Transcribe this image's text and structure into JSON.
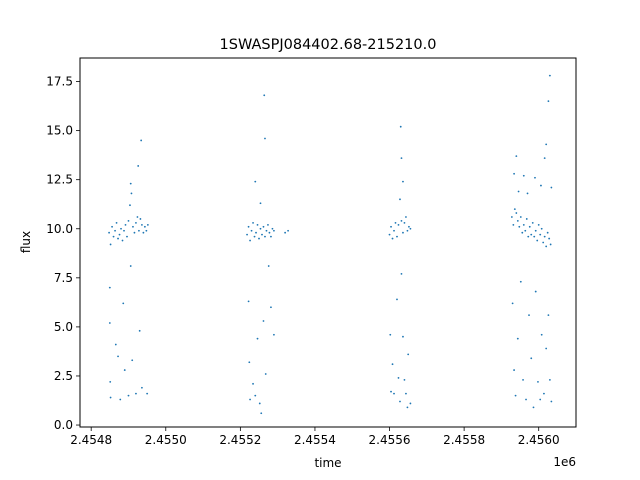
{
  "chart_data": {
    "type": "scatter",
    "title": "1SWASPJ084402.68-215210.0",
    "xlabel": "time",
    "ylabel": "flux",
    "x_offset_label": "1e6",
    "xlim": [
      2454770,
      2456100
    ],
    "ylim": [
      -0.1,
      18.7
    ],
    "x_ticks": [
      2454800,
      2455000,
      2455200,
      2455400,
      2455600,
      2455800,
      2456000
    ],
    "x_tick_labels": [
      "2.4548",
      "2.4550",
      "2.4552",
      "2.4554",
      "2.4556",
      "2.4558",
      "2.4560"
    ],
    "y_ticks": [
      0.0,
      2.5,
      5.0,
      7.5,
      10.0,
      12.5,
      15.0,
      17.5
    ],
    "y_tick_labels": [
      "0.0",
      "2.5",
      "5.0",
      "7.5",
      "10.0",
      "12.5",
      "15.0",
      "17.5"
    ],
    "grid": false,
    "marker_color": "#1f77b4",
    "series": [
      {
        "points": [
          [
            2454848,
            9.8
          ],
          [
            2454852,
            9.2
          ],
          [
            2454856,
            10.1
          ],
          [
            2454860,
            9.6
          ],
          [
            2454864,
            9.9
          ],
          [
            2454868,
            10.3
          ],
          [
            2454872,
            9.5
          ],
          [
            2454876,
            9.7
          ],
          [
            2454880,
            10.0
          ],
          [
            2454884,
            9.4
          ],
          [
            2454888,
            9.9
          ],
          [
            2454892,
            10.2
          ],
          [
            2454896,
            9.6
          ],
          [
            2454900,
            10.4
          ],
          [
            2454904,
            11.2
          ],
          [
            2454906,
            12.3
          ],
          [
            2454908,
            11.8
          ],
          [
            2454912,
            10.1
          ],
          [
            2454916,
            9.8
          ],
          [
            2454920,
            10.3
          ],
          [
            2454924,
            10.6
          ],
          [
            2454928,
            9.9
          ],
          [
            2454932,
            10.5
          ],
          [
            2454936,
            10.2
          ],
          [
            2454940,
            9.8
          ],
          [
            2454944,
            10.1
          ],
          [
            2454948,
            9.9
          ],
          [
            2454952,
            10.2
          ],
          [
            2454934,
            14.5
          ],
          [
            2454926,
            13.2
          ],
          [
            2454850,
            7.0
          ],
          [
            2454850,
            5.2
          ],
          [
            2454851,
            2.2
          ],
          [
            2454852,
            1.4
          ],
          [
            2454866,
            4.1
          ],
          [
            2454872,
            3.5
          ],
          [
            2454878,
            1.3
          ],
          [
            2454886,
            6.2
          ],
          [
            2454890,
            2.8
          ],
          [
            2454900,
            1.5
          ],
          [
            2454906,
            8.1
          ],
          [
            2454910,
            3.3
          ],
          [
            2454920,
            1.6
          ],
          [
            2454930,
            4.8
          ],
          [
            2454936,
            1.9
          ],
          [
            2454950,
            1.6
          ],
          [
            2455218,
            9.7
          ],
          [
            2455222,
            10.1
          ],
          [
            2455226,
            9.4
          ],
          [
            2455230,
            9.9
          ],
          [
            2455234,
            10.3
          ],
          [
            2455238,
            9.6
          ],
          [
            2455242,
            9.8
          ],
          [
            2455246,
            10.2
          ],
          [
            2455250,
            9.5
          ],
          [
            2455254,
            10.0
          ],
          [
            2455258,
            9.7
          ],
          [
            2455262,
            10.1
          ],
          [
            2455266,
            9.6
          ],
          [
            2455270,
            9.9
          ],
          [
            2455274,
            10.2
          ],
          [
            2455278,
            9.8
          ],
          [
            2455282,
            9.6
          ],
          [
            2455286,
            10.0
          ],
          [
            2455290,
            9.9
          ],
          [
            2455320,
            9.8
          ],
          [
            2455328,
            9.9
          ],
          [
            2455240,
            12.4
          ],
          [
            2455254,
            11.3
          ],
          [
            2455264,
            16.8
          ],
          [
            2455266,
            14.6
          ],
          [
            2455222,
            6.3
          ],
          [
            2455224,
            3.2
          ],
          [
            2455226,
            1.3
          ],
          [
            2455234,
            2.1
          ],
          [
            2455240,
            1.5
          ],
          [
            2455246,
            4.4
          ],
          [
            2455252,
            1.1
          ],
          [
            2455256,
            0.6
          ],
          [
            2455262,
            5.3
          ],
          [
            2455268,
            2.6
          ],
          [
            2455276,
            8.1
          ],
          [
            2455282,
            6.0
          ],
          [
            2455290,
            4.6
          ],
          [
            2455600,
            9.7
          ],
          [
            2455604,
            10.1
          ],
          [
            2455608,
            9.5
          ],
          [
            2455612,
            9.9
          ],
          [
            2455616,
            10.3
          ],
          [
            2455620,
            9.6
          ],
          [
            2455624,
            10.2
          ],
          [
            2455628,
            11.5
          ],
          [
            2455632,
            10.4
          ],
          [
            2455636,
            9.8
          ],
          [
            2455640,
            10.3
          ],
          [
            2455644,
            10.6
          ],
          [
            2455648,
            9.9
          ],
          [
            2455652,
            10.1
          ],
          [
            2455656,
            10.0
          ],
          [
            2455636,
            12.4
          ],
          [
            2455632,
            13.6
          ],
          [
            2455630,
            15.2
          ],
          [
            2455602,
            4.6
          ],
          [
            2455604,
            1.7
          ],
          [
            2455608,
            3.1
          ],
          [
            2455612,
            1.6
          ],
          [
            2455620,
            6.4
          ],
          [
            2455624,
            2.4
          ],
          [
            2455628,
            1.2
          ],
          [
            2455632,
            7.7
          ],
          [
            2455636,
            4.5
          ],
          [
            2455640,
            2.3
          ],
          [
            2455644,
            1.6
          ],
          [
            2455648,
            0.9
          ],
          [
            2455650,
            3.6
          ],
          [
            2455656,
            1.1
          ],
          [
            2455928,
            10.6
          ],
          [
            2455932,
            10.2
          ],
          [
            2455936,
            11.0
          ],
          [
            2455940,
            10.8
          ],
          [
            2455944,
            10.4
          ],
          [
            2455948,
            10.1
          ],
          [
            2455952,
            10.6
          ],
          [
            2455956,
            9.8
          ],
          [
            2455960,
            10.2
          ],
          [
            2455964,
            9.9
          ],
          [
            2455968,
            10.5
          ],
          [
            2455972,
            9.6
          ],
          [
            2455976,
            10.1
          ],
          [
            2455980,
            9.7
          ],
          [
            2455984,
            10.3
          ],
          [
            2455988,
            9.6
          ],
          [
            2455992,
            9.9
          ],
          [
            2455996,
            9.4
          ],
          [
            2456000,
            10.2
          ],
          [
            2456004,
            9.7
          ],
          [
            2456008,
            10.0
          ],
          [
            2456012,
            9.3
          ],
          [
            2456016,
            9.6
          ],
          [
            2456020,
            9.1
          ],
          [
            2456024,
            9.8
          ],
          [
            2456028,
            9.5
          ],
          [
            2456032,
            9.2
          ],
          [
            2455934,
            12.8
          ],
          [
            2455940,
            13.7
          ],
          [
            2455946,
            11.9
          ],
          [
            2455960,
            12.7
          ],
          [
            2455970,
            11.8
          ],
          [
            2455990,
            12.6
          ],
          [
            2456006,
            12.2
          ],
          [
            2456016,
            13.6
          ],
          [
            2456020,
            14.3
          ],
          [
            2456026,
            16.5
          ],
          [
            2456030,
            17.8
          ],
          [
            2456034,
            12.1
          ],
          [
            2455930,
            6.2
          ],
          [
            2455934,
            2.8
          ],
          [
            2455938,
            1.5
          ],
          [
            2455944,
            4.4
          ],
          [
            2455952,
            7.3
          ],
          [
            2455958,
            2.3
          ],
          [
            2455966,
            1.3
          ],
          [
            2455974,
            5.6
          ],
          [
            2455980,
            3.4
          ],
          [
            2455986,
            0.9
          ],
          [
            2455992,
            6.8
          ],
          [
            2455998,
            2.2
          ],
          [
            2456004,
            1.3
          ],
          [
            2456008,
            4.6
          ],
          [
            2456014,
            1.6
          ],
          [
            2456020,
            3.9
          ],
          [
            2456026,
            5.6
          ],
          [
            2456030,
            2.3
          ],
          [
            2456034,
            1.2
          ]
        ]
      }
    ]
  }
}
